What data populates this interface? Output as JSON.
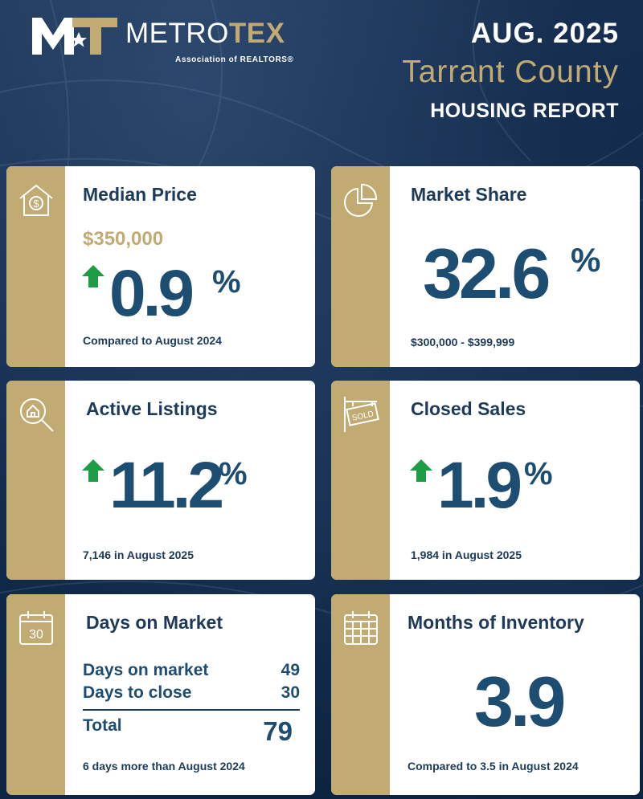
{
  "header": {
    "logo_mark": "MT",
    "brand_left": "METRO",
    "brand_right": "TEX",
    "brand_sub": "Association of REALTORS®",
    "date": "AUG. 2025",
    "county": "Tarrant County",
    "report": "HOUSING REPORT"
  },
  "colors": {
    "navy": "#1d3a5a",
    "gold": "#c2ab73",
    "value_blue": "#1d4d70",
    "arrow_green": "#1e9b45"
  },
  "cards": {
    "median_price": {
      "icon": "house-dollar-icon",
      "title": "Median Price",
      "price": "$350,000",
      "direction": "up",
      "value": "0.9",
      "unit": "%",
      "footnote": "Compared to August 2024"
    },
    "market_share": {
      "icon": "pie-chart-icon",
      "title": "Market Share",
      "value": "32.6",
      "unit": "%",
      "footnote": "$300,000 - $399,999"
    },
    "active_listings": {
      "icon": "magnifier-house-icon",
      "title": "Active Listings",
      "direction": "up",
      "value": "11.2",
      "unit": "%",
      "footnote": "7,146 in August 2025"
    },
    "closed_sales": {
      "icon": "sold-sign-icon",
      "title": "Closed Sales",
      "sign_text": "SOLD",
      "direction": "up",
      "value": "1.9",
      "unit": "%",
      "footnote": "1,984 in August 2025"
    },
    "days_on_market": {
      "icon": "calendar-icon",
      "icon_text": "30",
      "title": "Days on Market",
      "rows": [
        {
          "label": "Days on market",
          "value": "49"
        },
        {
          "label": "Days to close",
          "value": "30"
        }
      ],
      "total_label": "Total",
      "total_value": "79",
      "footnote": "6 days more than August 2024"
    },
    "months_inventory": {
      "icon": "calendar-grid-icon",
      "title": "Months of Inventory",
      "value": "3.9",
      "footnote": "Compared to 3.5 in August 2024"
    }
  }
}
